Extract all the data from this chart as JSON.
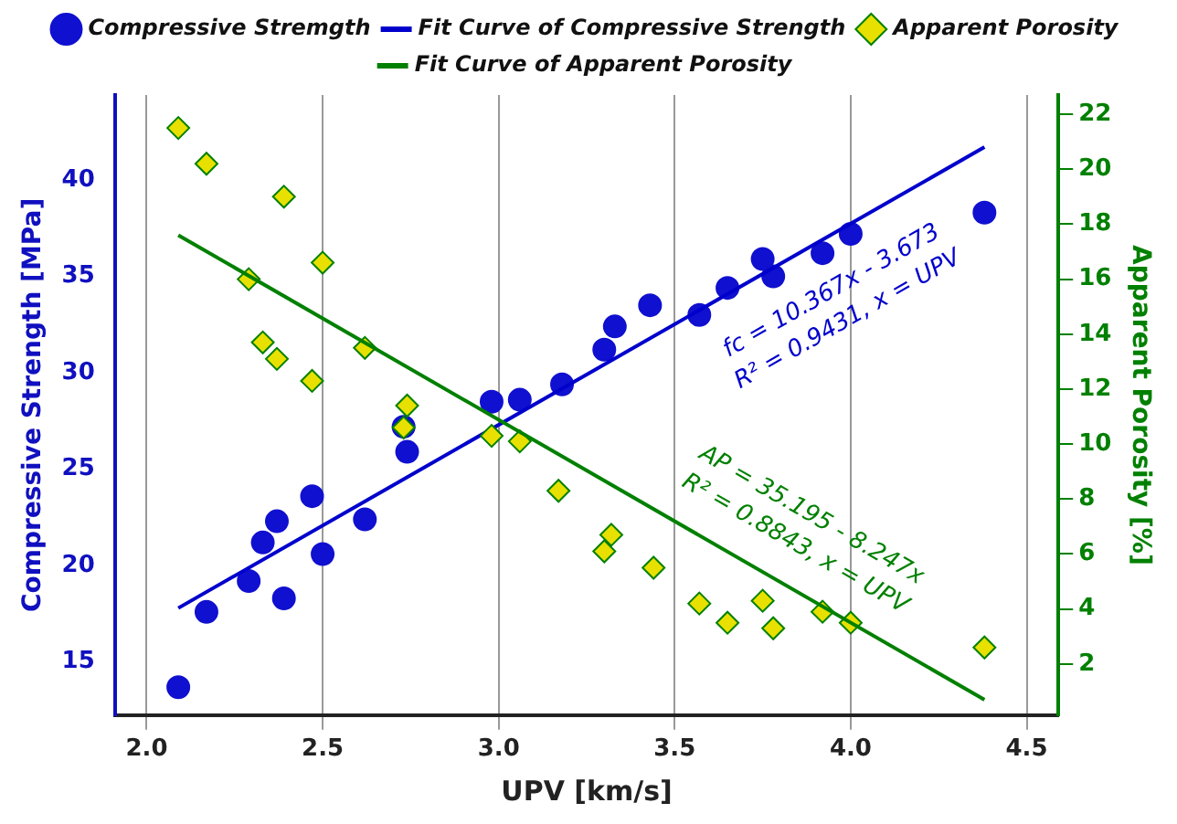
{
  "chart_data": {
    "type": "scatter",
    "xlabel": "UPV [km/s]",
    "ylabel": "Compressive Strength [MPa]",
    "y2label": "Apparent Porosity [%]",
    "xlim": [
      1.91,
      4.59
    ],
    "xticks": [
      {
        "value": 2,
        "label": "2.0"
      },
      2.5,
      {
        "value": 3,
        "label": "3.0"
      },
      3.5,
      {
        "value": 4,
        "label": "4.0"
      },
      4.5
    ],
    "ylim": [
      12.25,
      44.4
    ],
    "yticks": [
      15,
      20,
      25,
      30,
      35,
      40
    ],
    "y2lim": [
      0.14,
      22.7
    ],
    "y2ticks": [
      2,
      4,
      6,
      8,
      10,
      12,
      14,
      16,
      18,
      20,
      22
    ],
    "grid": "x",
    "legend": "top",
    "series": [
      {
        "name": "Compressive Stremgth",
        "marker": "circle",
        "color": "#1010d0",
        "x": [
          2.09,
          2.17,
          2.29,
          2.39,
          2.33,
          2.37,
          2.47,
          2.5,
          2.62,
          2.74,
          2.73,
          2.98,
          3.06,
          3.18,
          3.3,
          3.33,
          3.43,
          3.57,
          3.65,
          3.75,
          3.78,
          3.92,
          4.0,
          4.38
        ],
        "values": [
          13.7,
          17.6,
          19.2,
          18.3,
          21.2,
          22.3,
          23.6,
          20.6,
          22.4,
          25.9,
          27.2,
          28.5,
          28.6,
          29.4,
          31.2,
          32.4,
          33.5,
          33.0,
          34.4,
          35.9,
          35.0,
          36.2,
          37.2,
          38.3
        ]
      },
      {
        "name": "Fit Curve of Compressive Strength",
        "type": "line",
        "marker": "none",
        "color": "#0000cc",
        "x": [
          2.09,
          4.38
        ],
        "values": [
          17.8,
          41.7
        ]
      },
      {
        "name": "Apparent Porosity",
        "marker": "diamond",
        "axis": "y2",
        "color": "#e8e000",
        "x": [
          2.09,
          2.17,
          2.39,
          2.5,
          2.29,
          2.62,
          2.33,
          2.37,
          2.47,
          2.74,
          2.73,
          2.98,
          3.06,
          3.17,
          3.32,
          3.3,
          3.44,
          3.57,
          3.65,
          3.75,
          3.78,
          3.92,
          4.0,
          4.38
        ],
        "values": [
          21.5,
          20.2,
          19.0,
          16.6,
          16.0,
          13.5,
          13.7,
          13.1,
          12.3,
          11.4,
          10.6,
          10.3,
          10.1,
          8.3,
          6.7,
          6.1,
          5.5,
          4.2,
          3.5,
          4.3,
          3.3,
          3.9,
          3.5,
          2.6
        ]
      },
      {
        "name": "Fit Curve of Apparent Porosity",
        "type": "line",
        "marker": "none",
        "axis": "y2",
        "color": "#008000",
        "x": [
          2.09,
          4.38
        ],
        "values": [
          17.6,
          0.7
        ]
      }
    ],
    "annotations": [
      "fc = 10.367x - 3.673",
      "R² = 0.9431, x = UPV",
      "AP = 35.195 - 8.247x",
      "R² = 0.8843, x = UPV"
    ]
  }
}
